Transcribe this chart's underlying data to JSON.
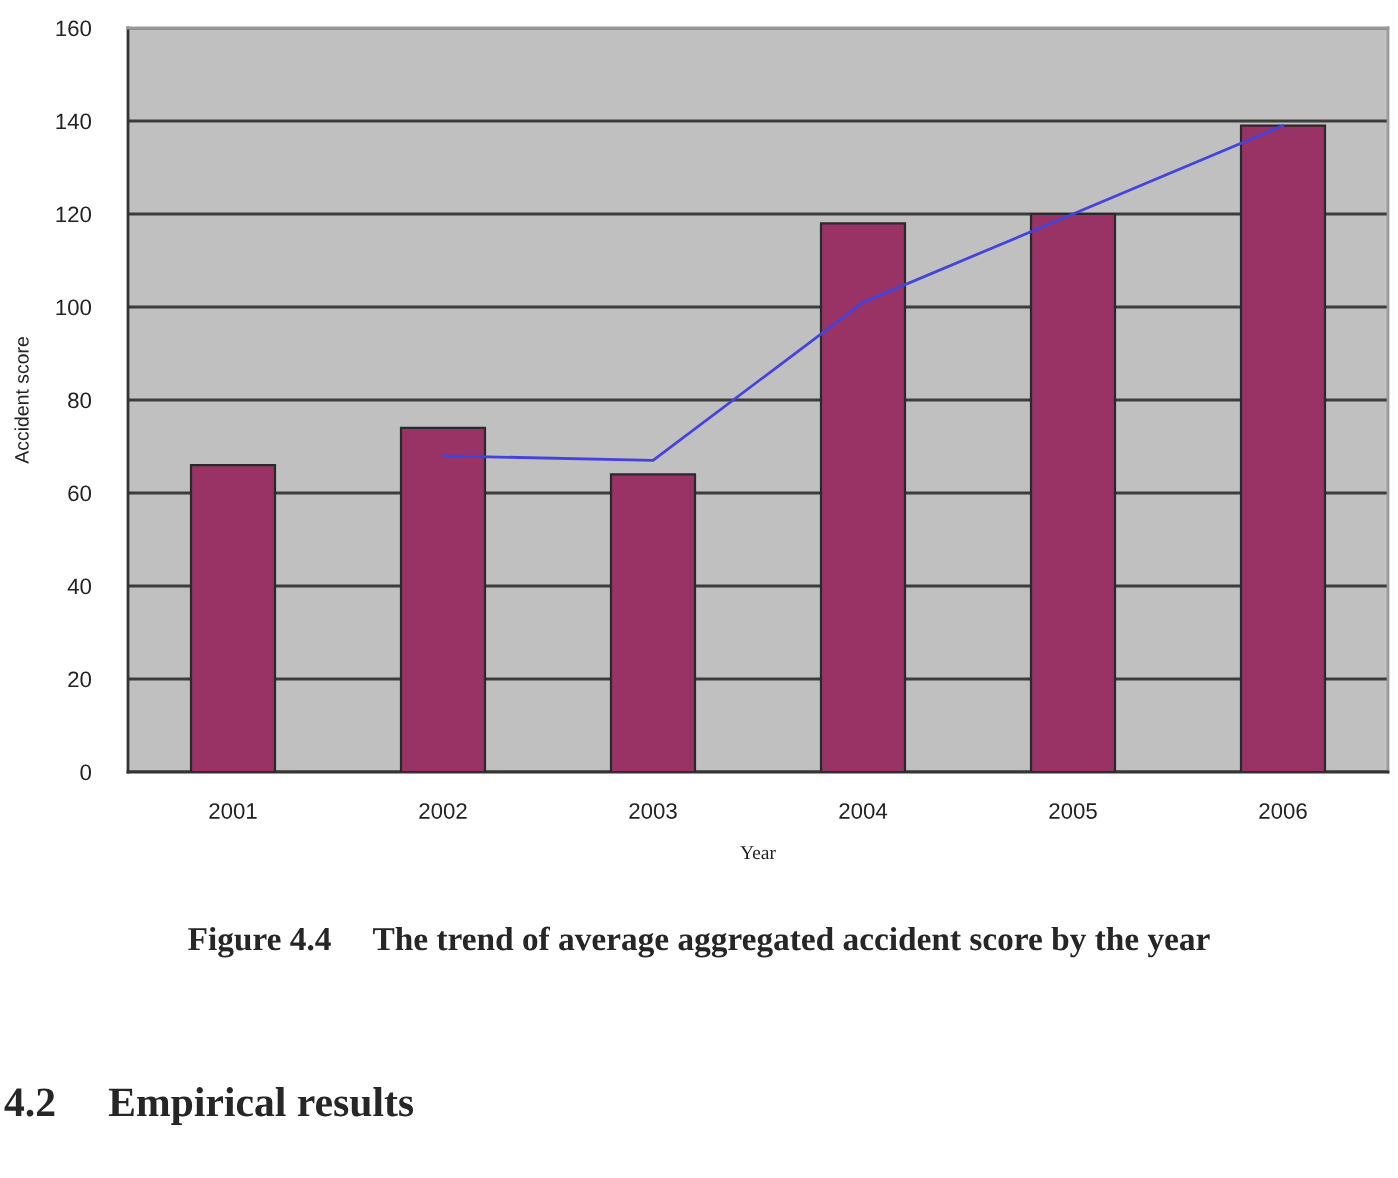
{
  "chart_data": {
    "type": "bar",
    "categories": [
      "2001",
      "2002",
      "2003",
      "2004",
      "2005",
      "2006"
    ],
    "series": [
      {
        "color": "#993366",
        "values": [
          66,
          74,
          64,
          118,
          120,
          139
        ]
      },
      {
        "type": "line",
        "color": "#4444dd",
        "values": [
          null,
          68,
          67,
          101,
          120,
          139
        ]
      }
    ],
    "xlabel": "Year",
    "ylabel": "Accident score",
    "ylim": [
      0,
      160
    ],
    "yticks": [
      0,
      20,
      40,
      60,
      80,
      100,
      120,
      140,
      160
    ],
    "grid": "y",
    "annotations": [
      "Figure 4.4     The trend of average aggregated accident score by the year",
      "4.2     Empirical results"
    ]
  }
}
